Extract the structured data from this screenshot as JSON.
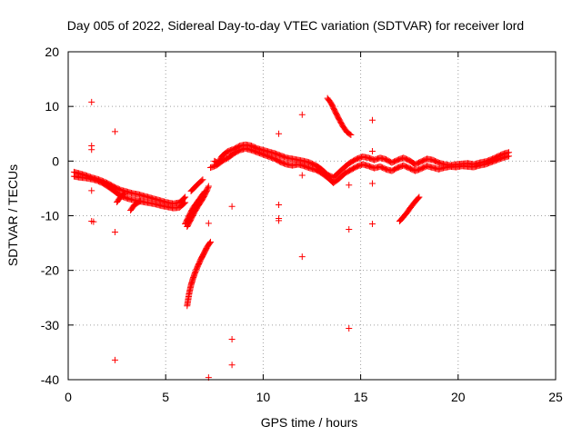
{
  "chart_data": {
    "type": "scatter",
    "title": "Day 005 of 2022, Sidereal Day-to-day VTEC variation (SDTVAR) for receiver lord",
    "xlabel": "GPS time / hours",
    "ylabel": "SDTVAR / TECUs",
    "xlim": [
      0,
      25
    ],
    "ylim": [
      -40,
      20
    ],
    "xticks": [
      0,
      5,
      10,
      15,
      20,
      25
    ],
    "yticks": [
      -40,
      -30,
      -20,
      -10,
      0,
      10,
      20
    ],
    "xtick_labels": [
      "0",
      "5",
      "10",
      "15",
      "20",
      "25"
    ],
    "ytick_labels": [
      "-40",
      "-30",
      "-20",
      "-10",
      "0",
      "10",
      "20"
    ],
    "grid": true,
    "marker": "+",
    "color": "#ff0000",
    "series": [
      {
        "name": "SDTVAR",
        "dense_tracks": [
          [
            [
              0.3,
              -2.0
            ],
            [
              0.6,
              -2.3
            ],
            [
              0.9,
              -2.6
            ],
            [
              1.2,
              -3.0
            ],
            [
              1.5,
              -3.3
            ],
            [
              1.8,
              -3.7
            ],
            [
              2.1,
              -4.2
            ],
            [
              2.4,
              -4.8
            ],
            [
              2.7,
              -5.3
            ],
            [
              3.0,
              -5.6
            ],
            [
              3.3,
              -5.9
            ],
            [
              3.6,
              -6.1
            ],
            [
              3.9,
              -6.4
            ],
            [
              4.2,
              -6.7
            ],
            [
              4.5,
              -7.0
            ],
            [
              4.8,
              -7.3
            ],
            [
              5.1,
              -7.6
            ],
            [
              5.4,
              -7.8
            ],
            [
              5.7,
              -7.6
            ],
            [
              6.0,
              -6.6
            ]
          ],
          [
            [
              6.3,
              -5.5
            ],
            [
              6.6,
              -4.4
            ],
            [
              6.9,
              -3.4
            ]
          ],
          [
            [
              0.3,
              -2.8
            ],
            [
              0.6,
              -3.0
            ],
            [
              0.9,
              -3.1
            ],
            [
              1.2,
              -3.3
            ],
            [
              1.5,
              -3.6
            ],
            [
              1.8,
              -4.1
            ],
            [
              2.1,
              -4.8
            ],
            [
              2.4,
              -5.6
            ],
            [
              2.7,
              -6.4
            ],
            [
              3.0,
              -6.8
            ],
            [
              3.3,
              -7.1
            ],
            [
              3.6,
              -7.3
            ],
            [
              3.9,
              -7.5
            ],
            [
              4.2,
              -7.7
            ],
            [
              4.5,
              -7.9
            ],
            [
              4.8,
              -8.2
            ],
            [
              5.1,
              -8.4
            ],
            [
              5.4,
              -8.6
            ],
            [
              5.7,
              -8.5
            ],
            [
              6.0,
              -7.6
            ]
          ],
          [
            [
              2.5,
              -7.5
            ],
            [
              2.7,
              -6.5
            ],
            [
              2.9,
              -6.0
            ]
          ],
          [
            [
              3.2,
              -9.0
            ],
            [
              3.4,
              -8.0
            ],
            [
              3.7,
              -7.3
            ]
          ],
          [
            [
              6.1,
              -12.0
            ],
            [
              6.3,
              -10.6
            ],
            [
              6.5,
              -9.2
            ],
            [
              6.7,
              -8.0
            ],
            [
              6.9,
              -6.9
            ],
            [
              7.1,
              -5.5
            ],
            [
              7.2,
              -4.6
            ]
          ],
          [
            [
              6.0,
              -11.5
            ],
            [
              6.2,
              -10.0
            ],
            [
              6.4,
              -8.6
            ],
            [
              6.6,
              -7.6
            ],
            [
              6.8,
              -6.6
            ],
            [
              7.0,
              -5.6
            ]
          ],
          [
            [
              6.1,
              -26.5
            ],
            [
              6.2,
              -24.3
            ],
            [
              6.3,
              -22.7
            ],
            [
              6.4,
              -21.5
            ],
            [
              6.5,
              -20.5
            ],
            [
              6.6,
              -19.6
            ],
            [
              6.7,
              -18.8
            ],
            [
              6.8,
              -18.0
            ],
            [
              6.9,
              -17.3
            ],
            [
              7.0,
              -16.6
            ],
            [
              7.1,
              -15.9
            ],
            [
              7.2,
              -15.3
            ],
            [
              7.3,
              -14.8
            ]
          ],
          [
            [
              7.5,
              0.0
            ],
            [
              7.7,
              -0.4
            ],
            [
              7.9,
              1.0
            ],
            [
              8.2,
              1.8
            ],
            [
              8.5,
              2.2
            ],
            [
              8.8,
              2.8
            ],
            [
              9.1,
              3.0
            ],
            [
              9.4,
              2.8
            ],
            [
              9.7,
              2.3
            ],
            [
              10.0,
              2.0
            ],
            [
              10.3,
              1.7
            ],
            [
              10.6,
              1.4
            ],
            [
              10.9,
              1.0
            ],
            [
              11.2,
              0.6
            ],
            [
              11.5,
              0.4
            ],
            [
              11.8,
              0.2
            ],
            [
              12.1,
              0.0
            ],
            [
              12.4,
              -0.3
            ],
            [
              12.7,
              -0.8
            ],
            [
              13.0,
              -1.5
            ],
            [
              13.3,
              -2.5
            ],
            [
              13.6,
              -3.0
            ],
            [
              13.9,
              -2.0
            ],
            [
              14.2,
              -1.0
            ],
            [
              14.5,
              -0.2
            ],
            [
              14.8,
              0.4
            ],
            [
              15.1,
              0.8
            ],
            [
              15.4,
              0.6
            ],
            [
              15.7,
              0.2
            ],
            [
              16.0,
              0.6
            ],
            [
              16.3,
              0.3
            ],
            [
              16.6,
              -0.3
            ],
            [
              16.9,
              0.2
            ],
            [
              17.2,
              0.6
            ],
            [
              17.5,
              0.1
            ],
            [
              17.8,
              -0.6
            ],
            [
              18.1,
              -0.1
            ],
            [
              18.4,
              0.4
            ],
            [
              18.7,
              0.2
            ],
            [
              19.0,
              -0.3
            ],
            [
              19.3,
              -0.6
            ],
            [
              19.6,
              -0.8
            ],
            [
              19.9,
              -0.6
            ],
            [
              20.2,
              -0.5
            ],
            [
              20.5,
              -0.4
            ],
            [
              20.8,
              -0.6
            ],
            [
              21.1,
              -0.3
            ],
            [
              21.4,
              -0.1
            ],
            [
              21.7,
              0.3
            ],
            [
              22.0,
              0.8
            ],
            [
              22.3,
              1.3
            ],
            [
              22.6,
              1.6
            ]
          ],
          [
            [
              7.3,
              -1.2
            ],
            [
              7.6,
              -0.8
            ],
            [
              7.9,
              0.0
            ],
            [
              8.2,
              0.6
            ],
            [
              8.5,
              1.4
            ],
            [
              8.8,
              2.0
            ],
            [
              9.1,
              2.3
            ],
            [
              9.4,
              2.0
            ],
            [
              9.7,
              1.6
            ],
            [
              10.0,
              1.2
            ],
            [
              10.3,
              0.8
            ],
            [
              10.6,
              0.4
            ],
            [
              10.9,
              -0.2
            ],
            [
              11.2,
              -0.6
            ],
            [
              11.5,
              -0.8
            ],
            [
              11.8,
              -0.6
            ],
            [
              12.1,
              -0.9
            ],
            [
              12.4,
              -1.3
            ],
            [
              12.7,
              -1.6
            ],
            [
              13.0,
              -2.2
            ],
            [
              13.3,
              -3.0
            ],
            [
              13.6,
              -4.0
            ],
            [
              13.9,
              -3.2
            ],
            [
              14.2,
              -2.2
            ],
            [
              14.5,
              -1.6
            ],
            [
              14.8,
              -1.0
            ],
            [
              15.1,
              -0.6
            ],
            [
              15.4,
              -0.9
            ],
            [
              15.7,
              -1.3
            ],
            [
              16.0,
              -1.0
            ],
            [
              16.3,
              -1.5
            ],
            [
              16.6,
              -1.8
            ],
            [
              16.9,
              -1.2
            ],
            [
              17.2,
              -0.8
            ],
            [
              17.5,
              -1.3
            ],
            [
              17.8,
              -1.8
            ],
            [
              18.1,
              -1.4
            ],
            [
              18.4,
              -0.9
            ],
            [
              18.7,
              -1.2
            ],
            [
              19.0,
              -1.5
            ],
            [
              19.3,
              -1.2
            ],
            [
              19.6,
              -1.0
            ],
            [
              19.9,
              -1.1
            ],
            [
              20.2,
              -0.9
            ],
            [
              20.5,
              -1.0
            ],
            [
              20.8,
              -1.1
            ],
            [
              21.1,
              -0.8
            ],
            [
              21.4,
              -0.6
            ],
            [
              21.7,
              -0.2
            ],
            [
              22.0,
              0.2
            ],
            [
              22.3,
              0.6
            ],
            [
              22.6,
              0.9
            ]
          ],
          [
            [
              13.3,
              11.5
            ],
            [
              13.5,
              10.5
            ],
            [
              13.7,
              9.0
            ],
            [
              13.9,
              7.6
            ],
            [
              14.1,
              6.3
            ],
            [
              14.3,
              5.3
            ],
            [
              14.5,
              4.8
            ]
          ],
          [
            [
              17.0,
              -11.0
            ],
            [
              17.2,
              -10.2
            ],
            [
              17.4,
              -9.3
            ],
            [
              17.6,
              -8.3
            ],
            [
              17.8,
              -7.4
            ],
            [
              18.0,
              -6.6
            ]
          ]
        ],
        "isolated_points": [
          [
            1.2,
            10.8
          ],
          [
            1.2,
            2.8
          ],
          [
            1.2,
            2.1
          ],
          [
            1.2,
            -5.4
          ],
          [
            1.2,
            -11.0
          ],
          [
            1.3,
            -11.1
          ],
          [
            2.4,
            5.4
          ],
          [
            2.4,
            -13.0
          ],
          [
            2.4,
            -36.4
          ],
          [
            7.2,
            -11.4
          ],
          [
            7.2,
            -39.6
          ],
          [
            8.4,
            -8.3
          ],
          [
            8.4,
            -32.6
          ],
          [
            8.4,
            -37.3
          ],
          [
            10.8,
            5.0
          ],
          [
            10.8,
            -8.0
          ],
          [
            10.8,
            -10.5
          ],
          [
            10.8,
            -10.9
          ],
          [
            12.0,
            8.5
          ],
          [
            12.0,
            -2.6
          ],
          [
            12.0,
            -17.5
          ],
          [
            14.4,
            -4.4
          ],
          [
            14.4,
            -12.5
          ],
          [
            14.4,
            -30.6
          ],
          [
            15.6,
            7.5
          ],
          [
            15.6,
            1.8
          ],
          [
            15.6,
            -4.1
          ],
          [
            15.6,
            -11.5
          ]
        ]
      }
    ]
  }
}
